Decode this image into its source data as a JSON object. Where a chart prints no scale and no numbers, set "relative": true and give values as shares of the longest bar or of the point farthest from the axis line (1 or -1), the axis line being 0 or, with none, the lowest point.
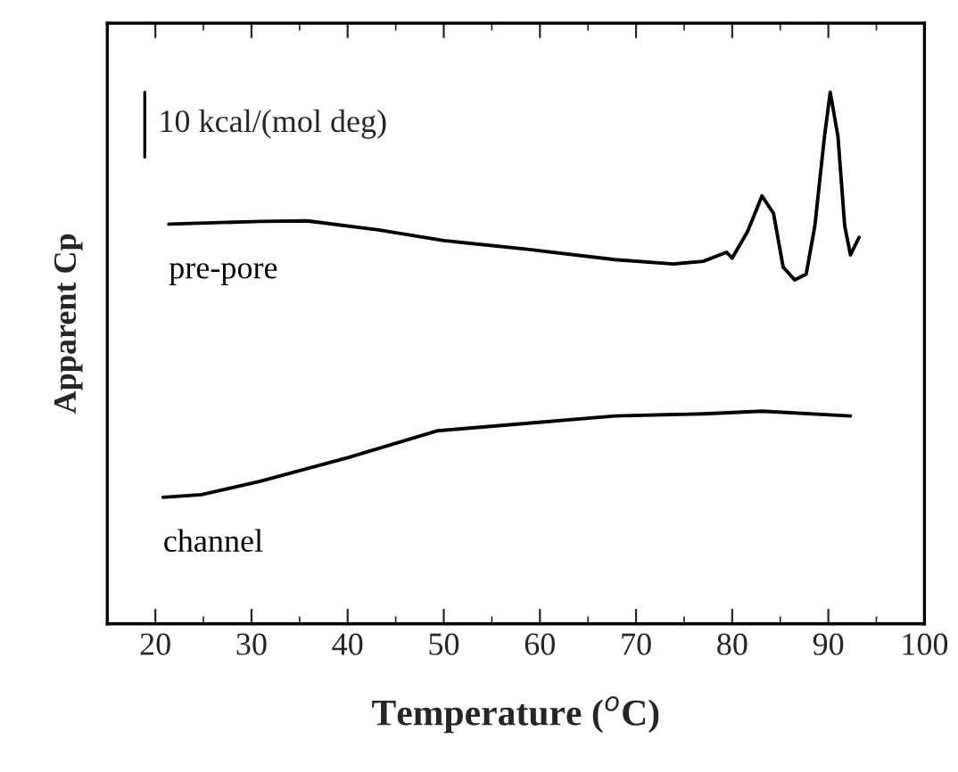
{
  "chart_data": {
    "type": "line",
    "relative": true,
    "xlabel": "Temperature ($^{o}$C)",
    "ylabel": "Apparent Cp",
    "xlim": [
      15,
      100
    ],
    "xticks": [
      20,
      30,
      40,
      50,
      60,
      70,
      80,
      90,
      100
    ],
    "legend": false,
    "grid": false,
    "marker": "none",
    "line_style": "solid",
    "annotations": [
      "10 kcal/(mol deg)"
    ],
    "series": [
      {
        "name": "pre-pore",
        "color": "#000000",
        "x": [
          21.4,
          30.9,
          35.8,
          43.2,
          50.0,
          58.5,
          67.8,
          73.9,
          77.0,
          79.4,
          80.0,
          81.6,
          83.1,
          84.3,
          85.3,
          86.5,
          87.7,
          88.6,
          89.6,
          90.2,
          91.0,
          91.7,
          92.3,
          93.2
        ],
        "values": [
          0.752,
          0.757,
          0.758,
          0.741,
          0.721,
          0.705,
          0.685,
          0.677,
          0.682,
          0.699,
          0.688,
          0.738,
          0.805,
          0.772,
          0.671,
          0.647,
          0.658,
          0.749,
          0.917,
          1.0,
          0.917,
          0.749,
          0.694,
          0.727
        ]
      },
      {
        "name": "channel",
        "color": "#000000",
        "x": [
          20.8,
          24.8,
          30.9,
          40.1,
          49.3,
          58.5,
          67.8,
          77.0,
          83.1,
          92.3
        ],
        "values": [
          0.238,
          0.243,
          0.268,
          0.313,
          0.363,
          0.377,
          0.391,
          0.395,
          0.4,
          0.391
        ]
      }
    ]
  }
}
